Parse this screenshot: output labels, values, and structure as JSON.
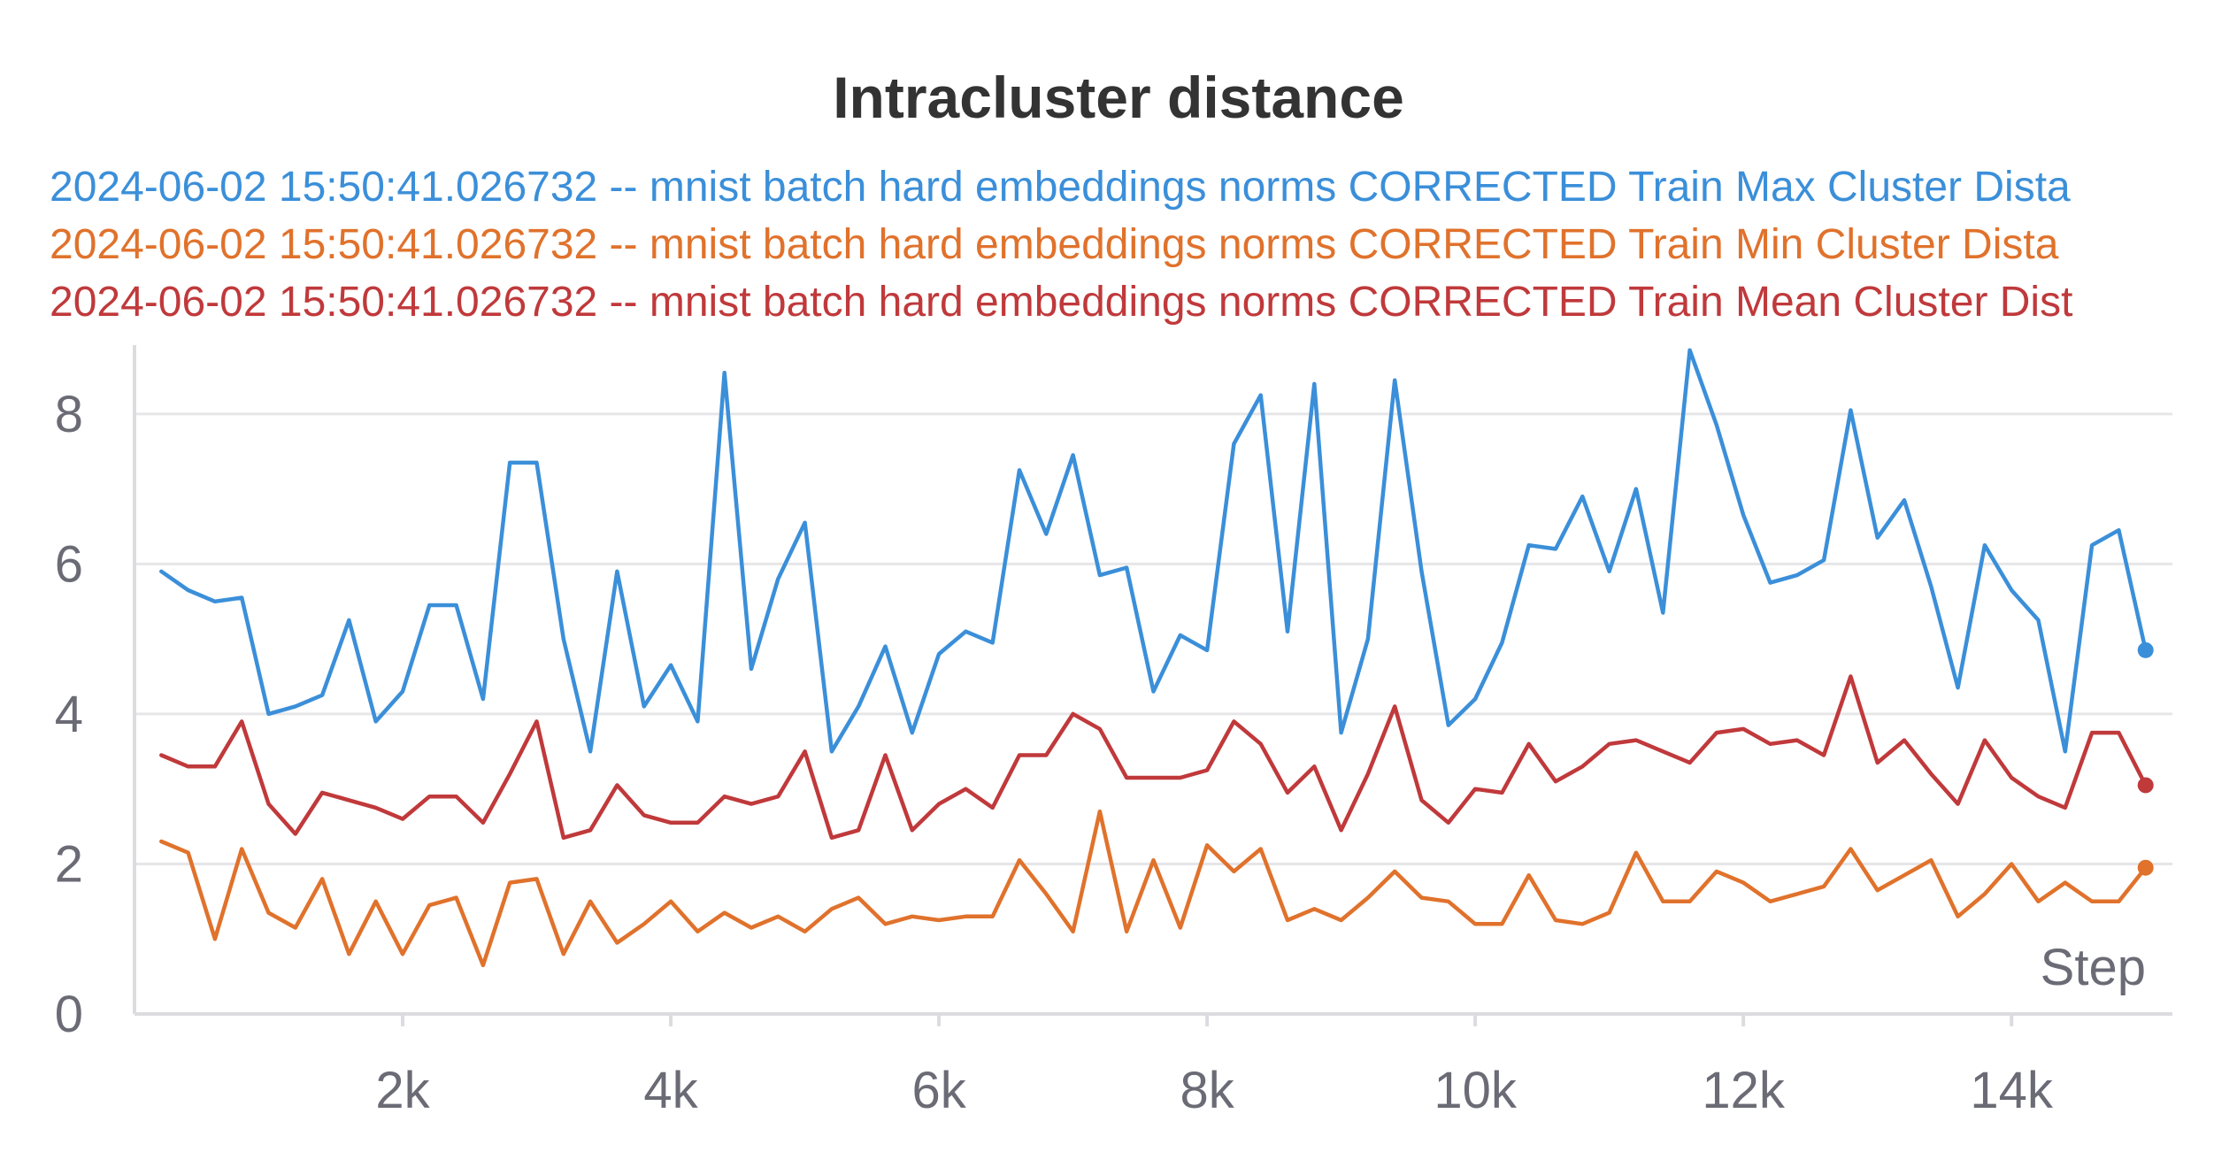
{
  "chart_data": {
    "type": "line",
    "title": "Intracluster distance",
    "xlabel": "Step",
    "ylabel": "",
    "xlim": [
      0,
      15200
    ],
    "ylim": [
      0,
      8.8
    ],
    "x_ticks": [
      2000,
      4000,
      6000,
      8000,
      10000,
      12000,
      14000
    ],
    "x_tick_labels": [
      "2k",
      "4k",
      "6k",
      "8k",
      "10k",
      "12k",
      "14k"
    ],
    "y_ticks": [
      0,
      2,
      4,
      6,
      8
    ],
    "y_tick_labels": [
      "0",
      "2",
      "4",
      "6",
      "8"
    ],
    "grid": true,
    "legend_position": "top",
    "x": [
      200,
      400,
      600,
      800,
      1000,
      1200,
      1400,
      1600,
      1800,
      2000,
      2200,
      2400,
      2600,
      2800,
      3000,
      3200,
      3400,
      3600,
      3800,
      4000,
      4200,
      4400,
      4600,
      4800,
      5000,
      5200,
      5400,
      5600,
      5800,
      6000,
      6200,
      6400,
      6600,
      6800,
      7000,
      7200,
      7400,
      7600,
      7800,
      8000,
      8200,
      8400,
      8600,
      8800,
      9000,
      9200,
      9400,
      9600,
      9800,
      10000,
      10200,
      10400,
      10600,
      10800,
      11000,
      11200,
      11400,
      11600,
      11800,
      12000,
      12200,
      12400,
      12600,
      12800,
      13000,
      13200,
      13400,
      13600,
      13800,
      14000,
      14200,
      14400,
      14600,
      14800,
      15000
    ],
    "series": [
      {
        "name": "2024-06-02 15:50:41.026732 -- mnist batch hard embeddings norms CORRECTED Train Max Cluster Dista",
        "color": "#3b8fd9",
        "values": [
          5.9,
          5.65,
          5.5,
          5.55,
          4.0,
          4.1,
          4.25,
          5.25,
          3.9,
          4.3,
          5.45,
          5.45,
          4.2,
          7.35,
          7.35,
          5.0,
          3.5,
          5.9,
          4.1,
          4.65,
          3.9,
          8.55,
          4.6,
          5.8,
          6.55,
          3.5,
          4.1,
          4.9,
          3.75,
          4.8,
          5.1,
          4.95,
          7.25,
          6.4,
          7.45,
          5.85,
          5.95,
          4.3,
          5.05,
          4.85,
          7.6,
          8.25,
          5.1,
          8.4,
          3.75,
          5.0,
          8.45,
          5.9,
          3.85,
          4.2,
          4.95,
          6.25,
          6.2,
          6.9,
          5.9,
          7.0,
          5.35,
          8.85,
          7.85,
          6.65,
          5.75,
          5.85,
          6.05,
          8.05,
          6.35,
          6.85,
          5.7,
          4.35,
          6.25,
          5.65,
          5.25,
          3.5,
          6.25,
          6.45,
          4.85
        ]
      },
      {
        "name": "2024-06-02 15:50:41.026732 -- mnist batch hard embeddings norms CORRECTED Train Min Cluster Dista",
        "color": "#e0722c",
        "values": [
          2.3,
          2.15,
          1.0,
          2.2,
          1.35,
          1.15,
          1.8,
          0.8,
          1.5,
          0.8,
          1.45,
          1.55,
          0.65,
          1.75,
          1.8,
          0.8,
          1.5,
          0.95,
          1.2,
          1.5,
          1.1,
          1.35,
          1.15,
          1.3,
          1.1,
          1.4,
          1.55,
          1.2,
          1.3,
          1.25,
          1.3,
          1.3,
          2.05,
          1.6,
          1.1,
          2.7,
          1.1,
          2.05,
          1.15,
          2.25,
          1.9,
          2.2,
          1.25,
          1.4,
          1.25,
          1.55,
          1.9,
          1.55,
          1.5,
          1.2,
          1.2,
          1.85,
          1.25,
          1.2,
          1.35,
          2.15,
          1.5,
          1.5,
          1.9,
          1.75,
          1.5,
          1.6,
          1.7,
          2.2,
          1.65,
          1.85,
          2.05,
          1.3,
          1.6,
          2.0,
          1.5,
          1.75,
          1.5,
          1.5,
          1.95
        ]
      },
      {
        "name": "2024-06-02 15:50:41.026732 -- mnist batch hard embeddings norms CORRECTED Train Mean Cluster Dist",
        "color": "#c0393b",
        "values": [
          3.45,
          3.3,
          3.3,
          3.9,
          2.8,
          2.4,
          2.95,
          2.85,
          2.75,
          2.6,
          2.9,
          2.9,
          2.55,
          3.2,
          3.9,
          2.35,
          2.45,
          3.05,
          2.65,
          2.55,
          2.55,
          2.9,
          2.8,
          2.9,
          3.5,
          2.35,
          2.45,
          3.45,
          2.45,
          2.8,
          3.0,
          2.75,
          3.45,
          3.45,
          4.0,
          3.8,
          3.15,
          3.15,
          3.15,
          3.25,
          3.9,
          3.6,
          2.95,
          3.3,
          2.45,
          3.2,
          4.1,
          2.85,
          2.55,
          3.0,
          2.95,
          3.6,
          3.1,
          3.3,
          3.6,
          3.65,
          3.5,
          3.35,
          3.75,
          3.8,
          3.6,
          3.65,
          3.45,
          4.5,
          3.35,
          3.65,
          3.2,
          2.8,
          3.65,
          3.15,
          2.9,
          2.75,
          3.75,
          3.75,
          3.05
        ]
      }
    ]
  }
}
